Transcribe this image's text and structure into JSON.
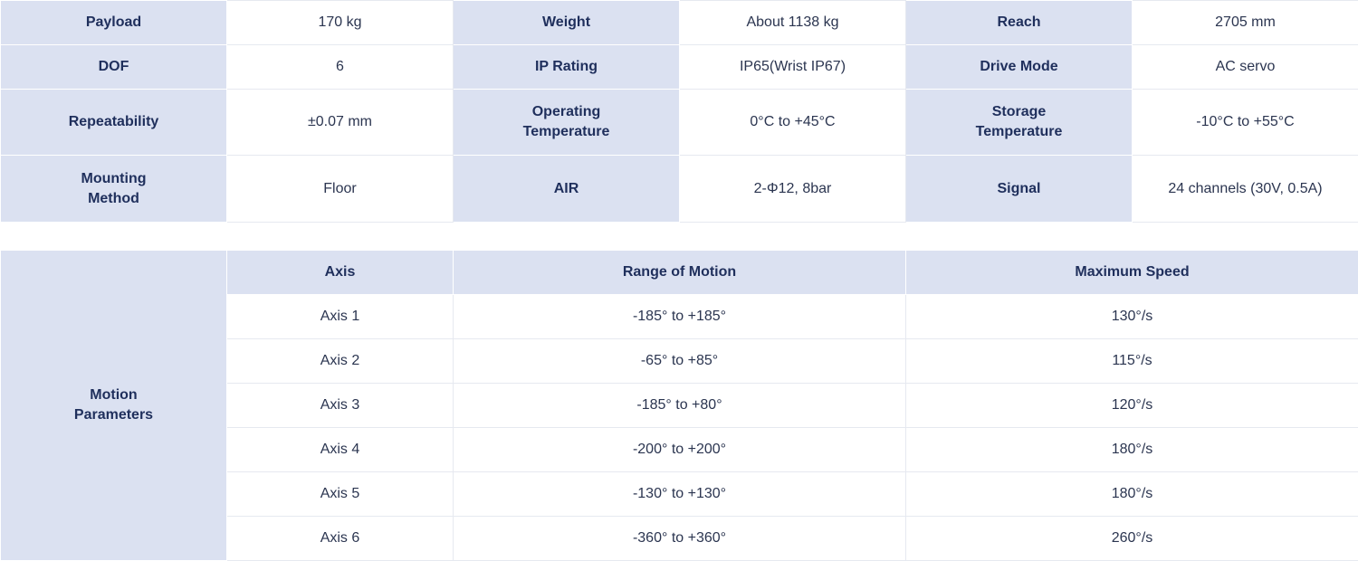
{
  "specs": {
    "rows": [
      [
        {
          "label": "Payload",
          "value": "170 kg"
        },
        {
          "label": "Weight",
          "value": "About 1138 kg"
        },
        {
          "label": "Reach",
          "value": "2705 mm"
        }
      ],
      [
        {
          "label": "DOF",
          "value": "6"
        },
        {
          "label": "IP Rating",
          "value": "IP65(Wrist IP67)"
        },
        {
          "label": "Drive Mode",
          "value": "AC servo"
        }
      ],
      [
        {
          "label": "Repeatability",
          "value": "±0.07 mm"
        },
        {
          "label": "Operating\nTemperature",
          "value": "0°C to +45°C"
        },
        {
          "label": "Storage\nTemperature",
          "value": "-10°C to +55°C"
        }
      ],
      [
        {
          "label": "Mounting\nMethod",
          "value": "Floor"
        },
        {
          "label": "AIR",
          "value": "2-Φ12, 8bar"
        },
        {
          "label": "Signal",
          "value": "24 channels (30V, 0.5A)"
        }
      ]
    ]
  },
  "motion": {
    "section_label": "Motion\nParameters",
    "headers": [
      "Axis",
      "Range of Motion",
      "Maximum Speed"
    ],
    "rows": [
      [
        "Axis 1",
        "-185° to +185°",
        "130°/s"
      ],
      [
        "Axis 2",
        "-65° to +85°",
        "115°/s"
      ],
      [
        "Axis 3",
        "-185° to +80°",
        "120°/s"
      ],
      [
        "Axis 4",
        "-200° to +200°",
        "180°/s"
      ],
      [
        "Axis 5",
        "-130° to +130°",
        "180°/s"
      ],
      [
        "Axis 6",
        "-360° to +360°",
        "260°/s"
      ]
    ]
  }
}
